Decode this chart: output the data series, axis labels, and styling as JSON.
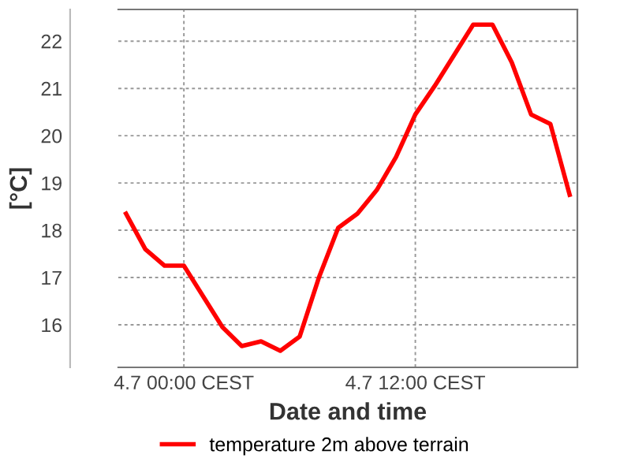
{
  "chart_data": {
    "type": "line",
    "xlabel": "Date and time",
    "ylabel": "[°C]",
    "categories": [
      null,
      null,
      null,
      "4.7 00:00 CEST",
      null,
      null,
      null,
      null,
      null,
      null,
      null,
      null,
      null,
      null,
      null,
      "4.7 12:00 CEST",
      null,
      null,
      null,
      null,
      null,
      null,
      null,
      null
    ],
    "series": [
      {
        "name": "temperature 2m above terrain",
        "color": "#ff0000",
        "values": [
          18.35,
          17.6,
          17.25,
          17.25,
          16.6,
          15.95,
          15.55,
          15.65,
          15.45,
          15.75,
          17.0,
          18.05,
          18.35,
          18.85,
          19.55,
          20.45,
          21.05,
          21.7,
          22.35,
          22.35,
          21.55,
          20.45,
          20.25,
          18.75
        ]
      }
    ],
    "ylim": [
      15.1,
      22.67
    ],
    "yticks": [
      16,
      17,
      18,
      19,
      20,
      21,
      22
    ],
    "grid": true,
    "legend": "bottom",
    "marker": "none",
    "line_style": "solid"
  }
}
